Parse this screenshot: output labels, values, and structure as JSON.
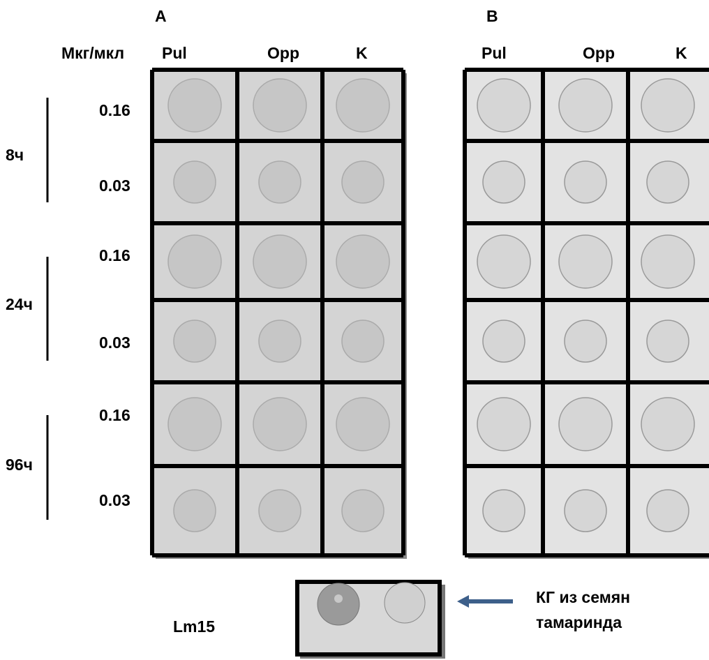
{
  "panels": [
    {
      "label": "A",
      "columns": [
        "Pul",
        "Opp",
        "K"
      ]
    },
    {
      "label": "B",
      "columns": [
        "Pul",
        "Opp",
        "K"
      ]
    }
  ],
  "row_header": "Мкг/мкл",
  "rows": [
    {
      "time": "8ч",
      "concentrations": [
        "0.16",
        "0.03"
      ]
    },
    {
      "time": "24ч",
      "concentrations": [
        "0.16",
        "0.03"
      ]
    },
    {
      "time": "96ч",
      "concentrations": [
        "0.16",
        "0.03"
      ]
    }
  ],
  "control": {
    "label": "Lm15",
    "note": [
      "КГ из семян",
      "тамаринда"
    ]
  }
}
